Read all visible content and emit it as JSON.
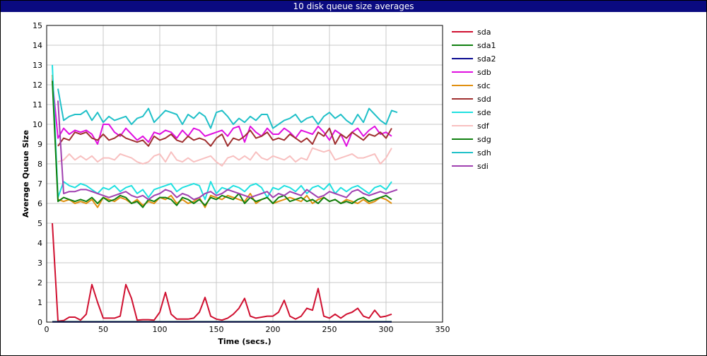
{
  "window": {
    "title": "10 disk queue size averages"
  },
  "chart_data": {
    "type": "line",
    "title": "10 disk queue size averages",
    "xlabel": "Time (secs.)",
    "ylabel": "Average Queue Size",
    "xlim": [
      0,
      350
    ],
    "ylim": [
      0,
      15
    ],
    "xticks": [
      0,
      50,
      100,
      150,
      200,
      250,
      300,
      350
    ],
    "yticks": [
      0,
      1,
      2,
      3,
      4,
      5,
      6,
      7,
      8,
      9,
      10,
      11,
      12,
      13,
      14,
      15
    ],
    "grid": true,
    "legend_position": "right",
    "series": [
      {
        "name": "sda",
        "color": "#d01030",
        "x": [
          5,
          10,
          15,
          20,
          25,
          30,
          35,
          40,
          45,
          50,
          55,
          60,
          65,
          70,
          75,
          80,
          85,
          90,
          95,
          100,
          105,
          110,
          115,
          120,
          125,
          130,
          135,
          140,
          145,
          150,
          155,
          160,
          165,
          170,
          175,
          180,
          185,
          190,
          195,
          200,
          205,
          210,
          215,
          220,
          225,
          230,
          235,
          240,
          245,
          250,
          255,
          260,
          265,
          270,
          275,
          280,
          285,
          290,
          295,
          300,
          305
        ],
        "y": [
          5.0,
          0.05,
          0.08,
          0.25,
          0.25,
          0.1,
          0.4,
          1.9,
          1.0,
          0.2,
          0.2,
          0.2,
          0.3,
          1.9,
          1.2,
          0.1,
          0.12,
          0.12,
          0.1,
          0.5,
          1.5,
          0.4,
          0.15,
          0.15,
          0.15,
          0.2,
          0.5,
          1.25,
          0.3,
          0.15,
          0.1,
          0.2,
          0.4,
          0.7,
          1.2,
          0.3,
          0.2,
          0.25,
          0.3,
          0.3,
          0.5,
          1.1,
          0.3,
          0.15,
          0.3,
          0.7,
          0.6,
          1.7,
          0.3,
          0.2,
          0.4,
          0.2,
          0.4,
          0.5,
          0.7,
          0.3,
          0.2,
          0.6,
          0.25,
          0.3,
          0.4
        ]
      },
      {
        "name": "sda1",
        "color": "#108010",
        "x": [
          5,
          305
        ],
        "y": [
          0.02,
          0.02
        ]
      },
      {
        "name": "sda2",
        "color": "#0a0a90",
        "x": [
          5,
          305
        ],
        "y": [
          0.01,
          0.01
        ]
      },
      {
        "name": "sdb",
        "color": "#e010e0",
        "x": [
          5,
          10,
          15,
          20,
          25,
          30,
          35,
          40,
          45,
          50,
          55,
          60,
          65,
          70,
          75,
          80,
          85,
          90,
          95,
          100,
          105,
          110,
          115,
          120,
          125,
          130,
          135,
          140,
          145,
          150,
          155,
          160,
          165,
          170,
          175,
          180,
          185,
          190,
          195,
          200,
          205,
          210,
          215,
          220,
          225,
          230,
          235,
          240,
          245,
          250,
          255,
          260,
          265,
          270,
          275,
          280,
          285,
          290,
          295,
          300,
          305
        ],
        "y": [
          12.3,
          9.3,
          9.8,
          9.5,
          9.7,
          9.6,
          9.7,
          9.5,
          9.0,
          10.0,
          10.0,
          9.6,
          9.4,
          9.8,
          9.5,
          9.2,
          9.4,
          9.1,
          9.6,
          9.5,
          9.7,
          9.6,
          9.3,
          9.7,
          9.4,
          9.8,
          9.7,
          9.4,
          9.5,
          9.6,
          9.7,
          9.4,
          9.8,
          9.9,
          9.1,
          9.9,
          9.6,
          9.4,
          9.8,
          9.5,
          9.5,
          9.8,
          9.6,
          9.3,
          9.7,
          9.6,
          9.5,
          9.9,
          9.6,
          9.2,
          9.7,
          9.5,
          8.9,
          9.6,
          9.8,
          9.4,
          9.7,
          9.9,
          9.5,
          9.6,
          9.4
        ]
      },
      {
        "name": "sdc",
        "color": "#e09010",
        "x": [
          5,
          10,
          15,
          20,
          25,
          30,
          35,
          40,
          45,
          50,
          55,
          60,
          65,
          70,
          75,
          80,
          85,
          90,
          95,
          100,
          105,
          110,
          115,
          120,
          125,
          130,
          135,
          140,
          145,
          150,
          155,
          160,
          165,
          170,
          175,
          180,
          185,
          190,
          195,
          200,
          205,
          210,
          215,
          220,
          225,
          230,
          235,
          240,
          245,
          250,
          255,
          260,
          265,
          270,
          275,
          280,
          285,
          290,
          295,
          300,
          305
        ],
        "y": [
          12.5,
          6.2,
          6.1,
          6.2,
          6.0,
          6.1,
          6.0,
          6.2,
          5.8,
          6.3,
          6.2,
          6.1,
          6.3,
          6.2,
          6.0,
          6.2,
          5.9,
          6.1,
          6.0,
          6.3,
          6.2,
          6.4,
          6.0,
          6.2,
          6.0,
          6.1,
          6.3,
          5.8,
          6.4,
          6.3,
          6.2,
          6.4,
          6.3,
          6.2,
          6.1,
          6.5,
          6.0,
          6.2,
          6.3,
          6.0,
          6.1,
          6.2,
          6.3,
          6.2,
          6.1,
          6.4,
          6.0,
          6.2,
          6.3,
          6.1,
          6.2,
          6.0,
          6.2,
          6.1,
          6.0,
          6.2,
          6.0,
          6.1,
          6.3,
          6.2,
          6.0
        ]
      },
      {
        "name": "sdd",
        "color": "#a03030",
        "x": [
          10,
          15,
          20,
          25,
          30,
          35,
          40,
          45,
          50,
          55,
          60,
          65,
          70,
          75,
          80,
          85,
          90,
          95,
          100,
          105,
          110,
          115,
          120,
          125,
          130,
          135,
          140,
          145,
          150,
          155,
          160,
          165,
          170,
          175,
          180,
          185,
          190,
          195,
          200,
          205,
          210,
          215,
          220,
          225,
          230,
          235,
          240,
          245,
          250,
          255,
          260,
          265,
          270,
          275,
          280,
          285,
          290,
          295,
          300,
          305
        ],
        "y": [
          8.9,
          9.3,
          9.2,
          9.6,
          9.5,
          9.6,
          9.3,
          9.2,
          9.5,
          9.2,
          9.3,
          9.5,
          9.3,
          9.2,
          9.1,
          9.2,
          8.9,
          9.4,
          9.2,
          9.3,
          9.5,
          9.2,
          9.1,
          9.4,
          9.2,
          9.3,
          9.2,
          8.9,
          9.3,
          9.5,
          8.9,
          9.3,
          9.2,
          9.4,
          9.7,
          9.3,
          9.4,
          9.6,
          9.2,
          9.3,
          9.2,
          9.5,
          9.3,
          9.1,
          9.3,
          9.0,
          9.6,
          9.4,
          9.8,
          9.0,
          9.5,
          9.3,
          9.6,
          9.4,
          9.2,
          9.5,
          9.4,
          9.6,
          9.3,
          9.8
        ]
      },
      {
        "name": "sde",
        "color": "#20e0e0",
        "x": [
          5,
          10,
          15,
          20,
          25,
          30,
          35,
          40,
          45,
          50,
          55,
          60,
          65,
          70,
          75,
          80,
          85,
          90,
          95,
          100,
          105,
          110,
          115,
          120,
          125,
          130,
          135,
          140,
          145,
          150,
          155,
          160,
          165,
          170,
          175,
          180,
          185,
          190,
          195,
          200,
          205,
          210,
          215,
          220,
          225,
          230,
          235,
          240,
          245,
          250,
          255,
          260,
          265,
          270,
          275,
          280,
          285,
          290,
          295,
          300,
          305
        ],
        "y": [
          13.0,
          6.3,
          7.1,
          6.9,
          6.8,
          7.0,
          6.9,
          6.7,
          6.5,
          6.8,
          6.7,
          6.9,
          6.6,
          6.8,
          6.9,
          6.5,
          6.7,
          6.3,
          6.7,
          6.8,
          6.9,
          7.0,
          6.6,
          6.8,
          6.9,
          7.0,
          6.9,
          6.2,
          7.1,
          6.5,
          6.8,
          6.7,
          6.9,
          6.8,
          6.6,
          6.9,
          7.0,
          6.8,
          6.3,
          6.8,
          6.7,
          6.9,
          6.8,
          6.6,
          6.9,
          6.5,
          6.8,
          6.9,
          6.7,
          7.0,
          6.5,
          6.8,
          6.6,
          6.8,
          6.9,
          6.7,
          6.5,
          6.8,
          6.9,
          6.7,
          7.1
        ]
      },
      {
        "name": "sdf",
        "color": "#f8c0c0",
        "x": [
          10,
          15,
          20,
          25,
          30,
          35,
          40,
          45,
          50,
          55,
          60,
          65,
          70,
          75,
          80,
          85,
          90,
          95,
          100,
          105,
          110,
          115,
          120,
          125,
          130,
          135,
          140,
          145,
          150,
          155,
          160,
          165,
          170,
          175,
          180,
          185,
          190,
          195,
          200,
          205,
          210,
          215,
          220,
          225,
          230,
          235,
          240,
          245,
          250,
          255,
          260,
          265,
          270,
          275,
          280,
          285,
          290,
          295,
          300,
          305
        ],
        "y": [
          8.1,
          8.2,
          8.5,
          8.2,
          8.4,
          8.2,
          8.4,
          8.1,
          8.3,
          8.3,
          8.2,
          8.5,
          8.4,
          8.3,
          8.1,
          8.0,
          8.1,
          8.4,
          8.5,
          8.1,
          8.6,
          8.2,
          8.1,
          8.3,
          8.1,
          8.2,
          8.3,
          8.4,
          8.1,
          7.9,
          8.3,
          8.4,
          8.2,
          8.4,
          8.2,
          8.6,
          8.3,
          8.2,
          8.4,
          8.3,
          8.2,
          8.4,
          8.1,
          8.3,
          8.2,
          8.8,
          8.7,
          8.6,
          8.7,
          8.2,
          8.3,
          8.4,
          8.5,
          8.3,
          8.3,
          8.4,
          8.5,
          8.0,
          8.3,
          8.8
        ]
      },
      {
        "name": "sdg",
        "color": "#108010",
        "x": [
          5,
          10,
          15,
          20,
          25,
          30,
          35,
          40,
          45,
          50,
          55,
          60,
          65,
          70,
          75,
          80,
          85,
          90,
          95,
          100,
          105,
          110,
          115,
          120,
          125,
          130,
          135,
          140,
          145,
          150,
          155,
          160,
          165,
          170,
          175,
          180,
          185,
          190,
          195,
          200,
          205,
          210,
          215,
          220,
          225,
          230,
          235,
          240,
          245,
          250,
          255,
          260,
          265,
          270,
          275,
          280,
          285,
          290,
          295,
          300,
          305
        ],
        "y": [
          12.2,
          6.1,
          6.3,
          6.2,
          6.1,
          6.2,
          6.1,
          6.3,
          6.0,
          6.3,
          6.1,
          6.2,
          6.4,
          6.3,
          6.0,
          6.1,
          5.8,
          6.2,
          6.1,
          6.3,
          6.3,
          6.2,
          5.9,
          6.3,
          6.2,
          6.0,
          6.2,
          5.9,
          6.3,
          6.2,
          6.4,
          6.3,
          6.2,
          6.5,
          6.0,
          6.3,
          6.1,
          6.2,
          6.3,
          6.0,
          6.3,
          6.4,
          6.1,
          6.2,
          6.3,
          6.1,
          6.2,
          6.0,
          6.3,
          6.1,
          6.2,
          6.0,
          6.1,
          6.0,
          6.2,
          6.3,
          6.1,
          6.2,
          6.3,
          6.4,
          6.2
        ]
      },
      {
        "name": "sdh",
        "color": "#20c0c8",
        "x": [
          10,
          15,
          20,
          25,
          30,
          35,
          40,
          45,
          50,
          55,
          60,
          65,
          70,
          75,
          80,
          85,
          90,
          95,
          100,
          105,
          110,
          115,
          120,
          125,
          130,
          135,
          140,
          145,
          150,
          155,
          160,
          165,
          170,
          175,
          180,
          185,
          190,
          195,
          200,
          205,
          210,
          215,
          220,
          225,
          230,
          235,
          240,
          245,
          250,
          255,
          260,
          265,
          270,
          275,
          280,
          285,
          290,
          295,
          300,
          305,
          310
        ],
        "y": [
          11.8,
          10.2,
          10.4,
          10.5,
          10.5,
          10.7,
          10.2,
          10.6,
          10.1,
          10.4,
          10.2,
          10.3,
          10.4,
          10.0,
          10.3,
          10.4,
          10.8,
          10.1,
          10.4,
          10.7,
          10.6,
          10.5,
          10.0,
          10.5,
          10.3,
          10.6,
          10.4,
          9.8,
          10.6,
          10.7,
          10.4,
          10.0,
          10.3,
          10.1,
          10.4,
          10.2,
          10.5,
          10.5,
          9.8,
          10.0,
          10.2,
          10.3,
          10.5,
          10.1,
          10.3,
          10.4,
          10.0,
          10.4,
          10.6,
          10.3,
          10.5,
          10.2,
          10.0,
          10.5,
          10.1,
          10.8,
          10.5,
          10.2,
          10.0,
          10.7,
          10.6
        ]
      },
      {
        "name": "sdi",
        "color": "#a040b0",
        "x": [
          10,
          15,
          20,
          25,
          30,
          35,
          40,
          45,
          50,
          55,
          60,
          65,
          70,
          75,
          80,
          85,
          90,
          95,
          100,
          105,
          110,
          115,
          120,
          125,
          130,
          135,
          140,
          145,
          150,
          155,
          160,
          165,
          170,
          175,
          180,
          185,
          190,
          195,
          200,
          205,
          210,
          215,
          220,
          225,
          230,
          235,
          240,
          245,
          250,
          255,
          260,
          265,
          270,
          275,
          280,
          285,
          290,
          295,
          300,
          305,
          310
        ],
        "y": [
          11.2,
          6.5,
          6.6,
          6.6,
          6.7,
          6.7,
          6.6,
          6.5,
          6.4,
          6.3,
          6.4,
          6.5,
          6.6,
          6.4,
          6.3,
          6.4,
          6.2,
          6.4,
          6.5,
          6.7,
          6.6,
          6.3,
          6.5,
          6.4,
          6.2,
          6.3,
          6.5,
          6.6,
          6.4,
          6.5,
          6.7,
          6.6,
          6.5,
          6.4,
          6.3,
          6.4,
          6.5,
          6.6,
          6.3,
          6.5,
          6.4,
          6.6,
          6.5,
          6.4,
          6.7,
          6.5,
          6.3,
          6.4,
          6.6,
          6.5,
          6.4,
          6.3,
          6.6,
          6.7,
          6.5,
          6.4,
          6.5,
          6.6,
          6.5,
          6.6,
          6.7
        ]
      }
    ]
  }
}
